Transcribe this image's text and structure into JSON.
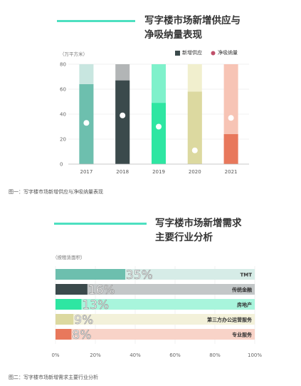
{
  "chart1": {
    "title_line1": "写字楼市场新增供应与",
    "title_line2": "净吸纳量表现",
    "unit_label": "（万平方米）",
    "legend_supply": "新增供应",
    "legend_absorption": "净吸纳量",
    "caption": "图一：写字楼市场新增供应与净吸纳量表现"
  },
  "chart2": {
    "title_line1": "写字楼市场新增需求",
    "title_line2": "主要行业分析",
    "unit_label": "（按租赁面积）",
    "caption": "图二：写字楼市场新增需求主要行业分析"
  },
  "chart_data": [
    {
      "type": "bar",
      "title": "写字楼市场新增供应与净吸纳量表现",
      "ylabel": "（万平方米）",
      "categories": [
        "2017",
        "2018",
        "2019",
        "2020",
        "2021"
      ],
      "series": [
        {
          "name": "新增供应",
          "values": [
            64,
            67,
            49,
            58,
            24
          ]
        },
        {
          "name": "净吸纳量",
          "values": [
            33,
            39,
            30,
            11,
            37
          ]
        }
      ],
      "ylim": [
        0,
        80
      ],
      "yticks": [
        "0",
        "20",
        "40",
        "60",
        "80"
      ],
      "colors": {
        "supply": [
          "#6dbfae",
          "#3b4a4c",
          "#2ee6a2",
          "#dcd9a0",
          "#e8785c"
        ],
        "background": [
          "#c8e6e0",
          "#b2b5b6",
          "#7ff1cb",
          "#f1efce",
          "#f7c4b5"
        ],
        "marker": "#ffffff"
      },
      "legend_position": "top-right"
    },
    {
      "type": "bar",
      "orientation": "horizontal",
      "title": "写字楼市场新增需求主要行业分析",
      "ylabel": "（按租赁面积）",
      "categories": [
        "TMT",
        "传统金融",
        "房地产",
        "第三方办公运营服务",
        "专业服务"
      ],
      "values": [
        35,
        16,
        13,
        9,
        8
      ],
      "value_labels": [
        "35%",
        "16%",
        "13%",
        "9%",
        "8%"
      ],
      "xlim": [
        0,
        100
      ],
      "xticks": [
        "0%",
        "20%",
        "40%",
        "60%",
        "80%",
        "100%"
      ],
      "colors": {
        "bars": [
          "#6dbfae",
          "#3b4a4c",
          "#2ee6a2",
          "#dcd9a0",
          "#e8785c"
        ],
        "background": [
          "#d6ece7",
          "#c3c7c8",
          "#a8f5dc",
          "#f3f1da",
          "#f8d3c8"
        ]
      }
    }
  ]
}
